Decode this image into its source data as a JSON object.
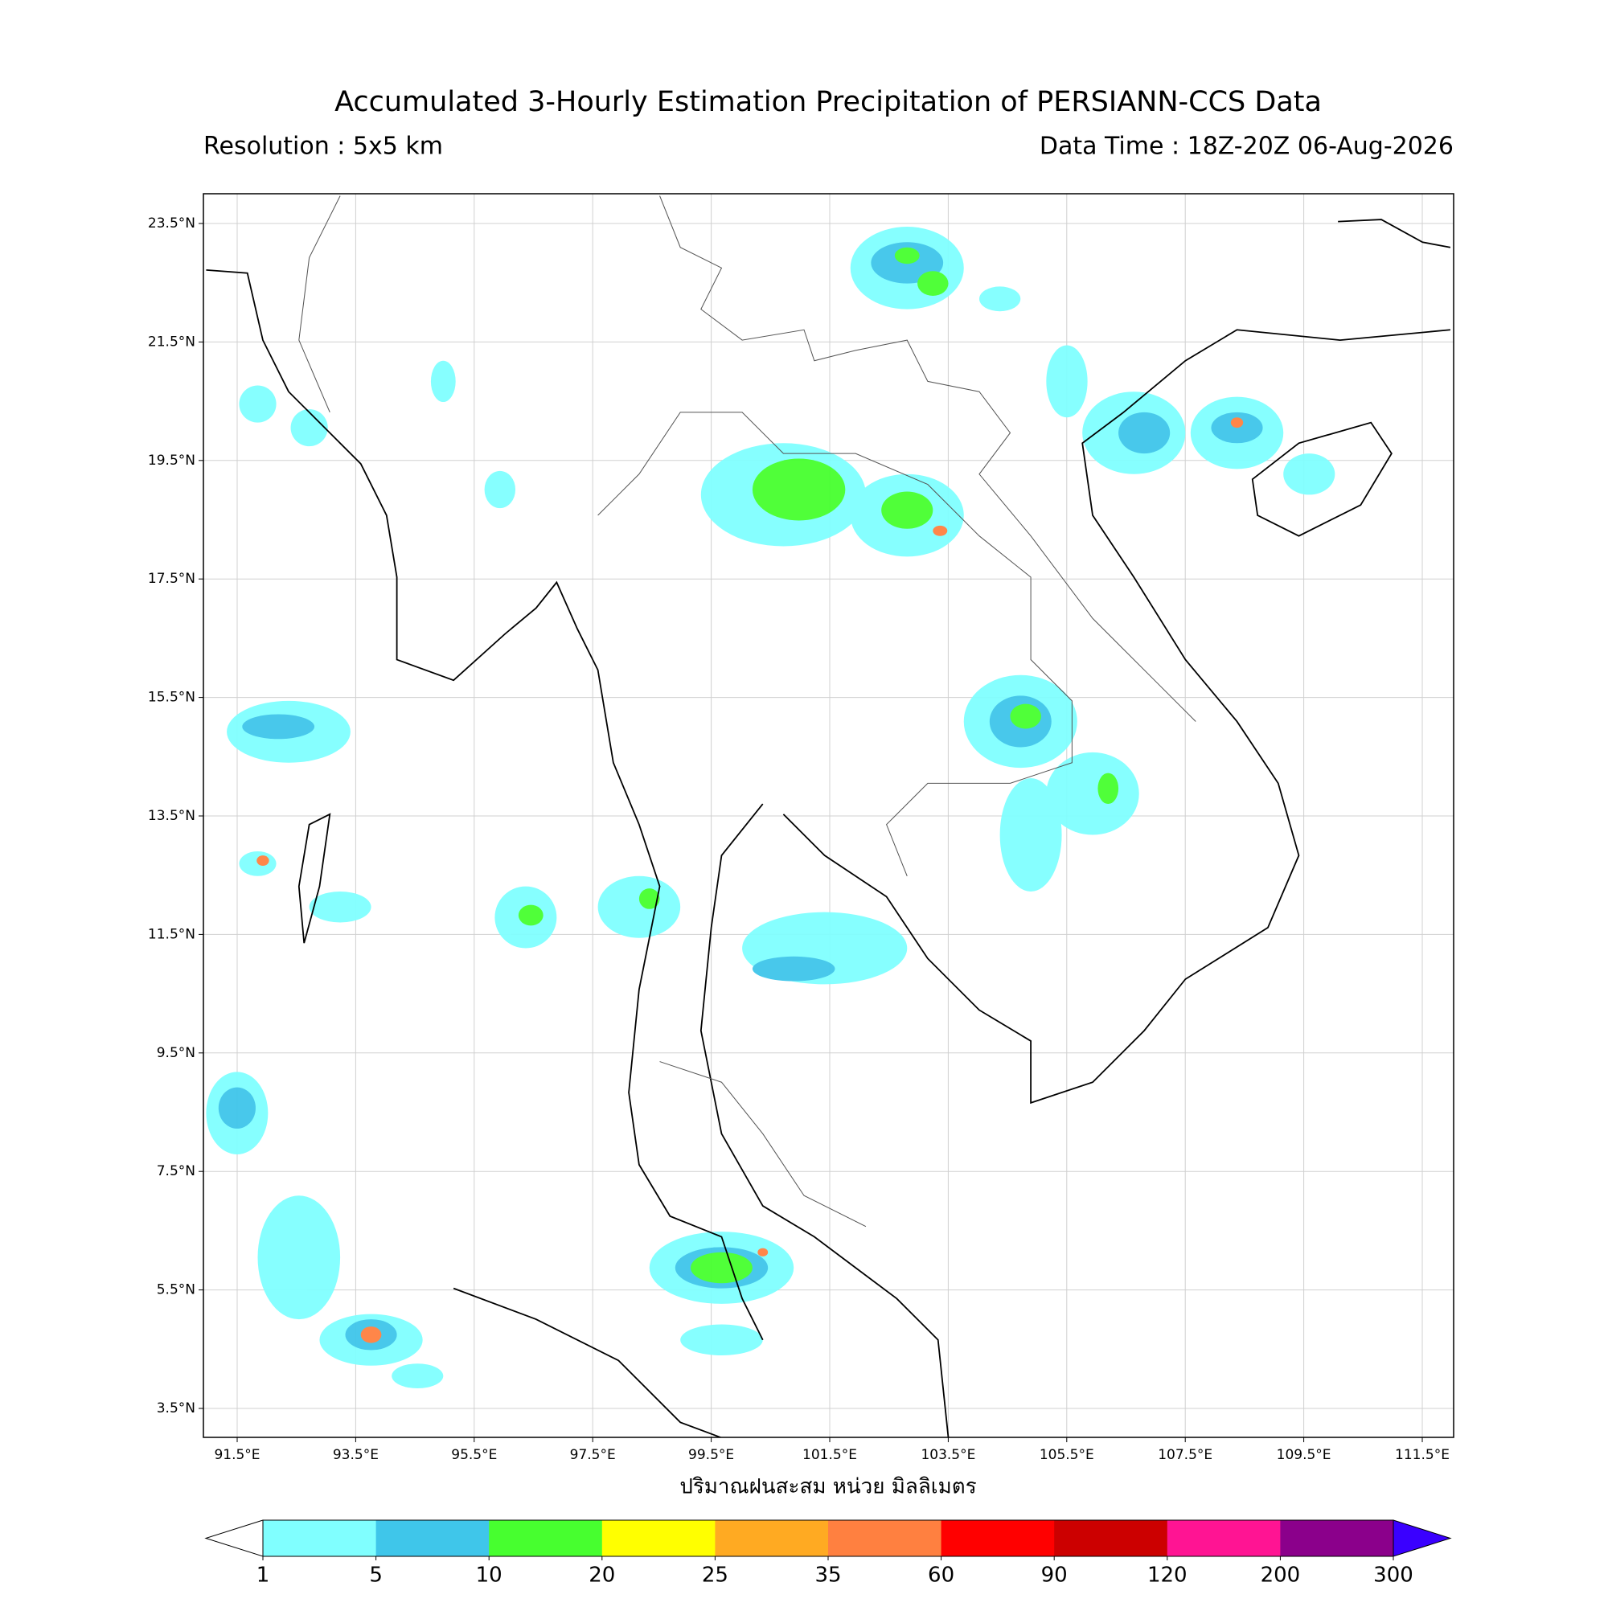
{
  "header": {
    "title": "Accumulated 3-Hourly Estimation Precipitation of PERSIANN-CCS Data",
    "resolution": "Resolution : 5x5 km",
    "data_time": "Data Time : 18Z-20Z 06-Aug-2026"
  },
  "map": {
    "lon_labels": [
      "91.5°E",
      "93.5°E",
      "95.5°E",
      "97.5°E",
      "99.5°E",
      "101.5°E",
      "103.5°E",
      "105.5°E",
      "107.5°E",
      "109.5°E",
      "111.5°E"
    ],
    "lat_labels": [
      "23.5°N",
      "21.5°N",
      "19.5°N",
      "17.5°N",
      "15.5°N",
      "13.5°N",
      "11.5°N",
      "9.5°N",
      "7.5°N",
      "5.5°N",
      "3.5°N"
    ],
    "xlabel": "ปริมาณฝนสะสม หน่วย มิลลิเมตร"
  },
  "colorbar": {
    "levels": [
      "1",
      "5",
      "10",
      "20",
      "25",
      "35",
      "60",
      "90",
      "120",
      "200",
      "300"
    ],
    "colors": [
      "#80ffff",
      "#3fc6ea",
      "#47ff2f",
      "#ffff00",
      "#ffaa22",
      "#ff8040",
      "#ff0000",
      "#cc0000",
      "#ff1493",
      "#8b008b"
    ],
    "under_color": "#ffffff",
    "over_color": "#3a00ff"
  }
}
